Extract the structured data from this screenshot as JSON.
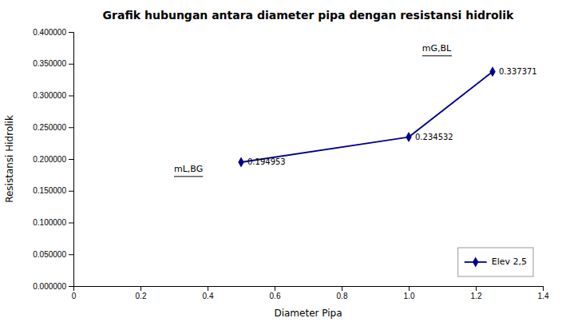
{
  "chart_data": {
    "type": "line",
    "title": "Grafik hubungan antara diameter pipa dengan resistansi hidrolik",
    "x_label": "Diameter Pipa",
    "y_label": "Resistansi Hidrolik",
    "x": [
      0.5,
      1.0,
      1.25
    ],
    "series": [
      {
        "name": "Elev 2,5",
        "color": "#00008B",
        "marker": "diamond",
        "values": [
          0.194953,
          0.234532,
          0.337371
        ]
      }
    ],
    "data_labels": true,
    "annotations": [
      {
        "text": "mL,BG",
        "x": 0.3,
        "y": 0.18
      },
      {
        "text": "mG,BL",
        "x": 1.04,
        "y": 0.37
      }
    ],
    "xlim": [
      0,
      1.4
    ],
    "ylim": [
      0.0,
      0.4
    ],
    "xticks": [
      0,
      0.2,
      0.4,
      0.6,
      0.8,
      {
        "value": 1.0,
        "label": "1.0"
      },
      1.2,
      1.4
    ],
    "yticks": [
      {
        "value": 0.0,
        "label": "0.000000"
      },
      {
        "value": 0.05,
        "label": "0.050000"
      },
      {
        "value": 0.1,
        "label": "0.100000"
      },
      {
        "value": 0.15,
        "label": "0.150000"
      },
      {
        "value": 0.2,
        "label": "0.200000"
      },
      {
        "value": 0.25,
        "label": "0.250000"
      },
      {
        "value": 0.3,
        "label": "0.300000"
      },
      {
        "value": 0.35,
        "label": "0.350000"
      },
      {
        "value": 0.4,
        "label": "0.400000"
      }
    ],
    "grid": false,
    "legend": "lower right"
  }
}
